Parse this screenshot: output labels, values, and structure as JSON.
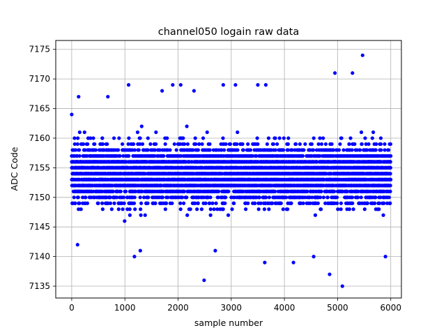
{
  "chart_data": {
    "type": "scatter",
    "title": "channel050 logain raw data",
    "xlabel": "sample number",
    "ylabel": "ADC Code",
    "xlim": [
      -300,
      6200
    ],
    "ylim": [
      7133.0,
      7176.5
    ],
    "xticks": [
      0,
      1000,
      2000,
      3000,
      4000,
      5000,
      6000
    ],
    "yticks": [
      7135,
      7140,
      7145,
      7150,
      7155,
      7160,
      7165,
      7170,
      7175
    ],
    "grid": true,
    "marker_color": "#0000ff",
    "n_samples": 6000,
    "series": [
      {
        "name": "",
        "core_band": [
          7145,
          7163
        ],
        "mean": 7154,
        "outliers": [
          {
            "x": 0,
            "y": 7164
          },
          {
            "x": 130,
            "y": 7167
          },
          {
            "x": 110,
            "y": 7142
          },
          {
            "x": 680,
            "y": 7167
          },
          {
            "x": 1070,
            "y": 7169
          },
          {
            "x": 1180,
            "y": 7140
          },
          {
            "x": 1290,
            "y": 7141
          },
          {
            "x": 1700,
            "y": 7168
          },
          {
            "x": 1900,
            "y": 7169
          },
          {
            "x": 2050,
            "y": 7169
          },
          {
            "x": 2300,
            "y": 7168
          },
          {
            "x": 2490,
            "y": 7136
          },
          {
            "x": 2700,
            "y": 7141
          },
          {
            "x": 2850,
            "y": 7169
          },
          {
            "x": 3080,
            "y": 7169
          },
          {
            "x": 3500,
            "y": 7169
          },
          {
            "x": 3650,
            "y": 7169
          },
          {
            "x": 3630,
            "y": 7139
          },
          {
            "x": 4170,
            "y": 7139
          },
          {
            "x": 4550,
            "y": 7140
          },
          {
            "x": 4850,
            "y": 7137
          },
          {
            "x": 4950,
            "y": 7171
          },
          {
            "x": 5090,
            "y": 7135
          },
          {
            "x": 5280,
            "y": 7171
          },
          {
            "x": 5470,
            "y": 7174
          },
          {
            "x": 5900,
            "y": 7140
          }
        ]
      }
    ]
  }
}
